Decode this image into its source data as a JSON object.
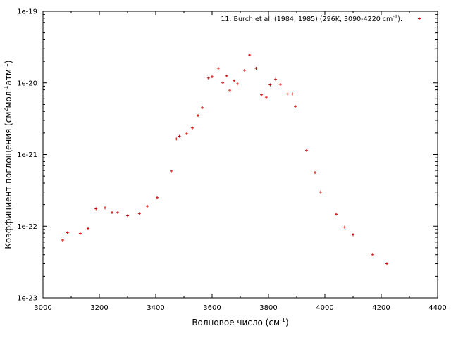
{
  "chart_data": {
    "type": "scatter",
    "xlabel": {
      "main": "Волновое число (см",
      "sup": "-1",
      "tail": ")"
    },
    "ylabel": {
      "main": "Коэффициент поглощения (см",
      "sup1": "2",
      "mid1": "мол",
      "sup2": "-1",
      "mid2": "атм",
      "sup3": "-1",
      "tail": ")"
    },
    "xlim": [
      3000,
      4400
    ],
    "ylim": [
      1e-23,
      1e-19
    ],
    "yscale": "log",
    "grid": false,
    "legend_position": "top-right",
    "x_ticks": [
      {
        "value": 3000,
        "label": "3000"
      },
      {
        "value": 3200,
        "label": "3200"
      },
      {
        "value": 3400,
        "label": "3400"
      },
      {
        "value": 3600,
        "label": "3600"
      },
      {
        "value": 3800,
        "label": "3800"
      },
      {
        "value": 4000,
        "label": "4000"
      },
      {
        "value": 4200,
        "label": "4200"
      },
      {
        "value": 4400,
        "label": "4400"
      }
    ],
    "y_ticks": [
      {
        "value": 1e-23,
        "label": "1e-23"
      },
      {
        "value": 1e-22,
        "label": "1e-22"
      },
      {
        "value": 1e-21,
        "label": "1e-21"
      },
      {
        "value": 1e-20,
        "label": "1e-20"
      },
      {
        "value": 1e-19,
        "label": "1e-19"
      }
    ],
    "series": [
      {
        "name": "11. Burch et al. (1984, 1985) (296K, 3090-4220 cm",
        "name_sup": "-1",
        "name_tail": ").",
        "color": "#cc0000",
        "marker": "plus",
        "points": [
          [
            3070,
            6.4e-23
          ],
          [
            3087,
            8.1e-23
          ],
          [
            3132,
            7.9e-23
          ],
          [
            3160,
            9.3e-23
          ],
          [
            3188,
            1.75e-22
          ],
          [
            3220,
            1.8e-22
          ],
          [
            3245,
            1.55e-22
          ],
          [
            3265,
            1.55e-22
          ],
          [
            3300,
            1.4e-22
          ],
          [
            3342,
            1.5e-22
          ],
          [
            3370,
            1.9e-22
          ],
          [
            3405,
            2.5e-22
          ],
          [
            3455,
            5.9e-22
          ],
          [
            3473,
            1.65e-21
          ],
          [
            3484,
            1.8e-21
          ],
          [
            3510,
            1.95e-21
          ],
          [
            3530,
            2.35e-21
          ],
          [
            3550,
            3.5e-21
          ],
          [
            3565,
            4.5e-21
          ],
          [
            3587,
            1.17e-20
          ],
          [
            3600,
            1.22e-20
          ],
          [
            3622,
            1.6e-20
          ],
          [
            3638,
            1e-20
          ],
          [
            3652,
            1.25e-20
          ],
          [
            3663,
            7.9e-21
          ],
          [
            3678,
            1.07e-20
          ],
          [
            3690,
            9.7e-21
          ],
          [
            3715,
            1.5e-20
          ],
          [
            3733,
            2.45e-20
          ],
          [
            3756,
            1.6e-20
          ],
          [
            3775,
            6.8e-21
          ],
          [
            3792,
            6.3e-21
          ],
          [
            3806,
            9.4e-21
          ],
          [
            3825,
            1.12e-20
          ],
          [
            3842,
            9.5e-21
          ],
          [
            3868,
            7e-21
          ],
          [
            3885,
            7e-21
          ],
          [
            3895,
            4.7e-21
          ],
          [
            3935,
            1.14e-21
          ],
          [
            3965,
            5.6e-22
          ],
          [
            3985,
            3e-22
          ],
          [
            4040,
            1.47e-22
          ],
          [
            4070,
            9.7e-23
          ],
          [
            4100,
            7.6e-23
          ],
          [
            4170,
            4e-23
          ],
          [
            4220,
            3e-23
          ]
        ]
      }
    ]
  }
}
